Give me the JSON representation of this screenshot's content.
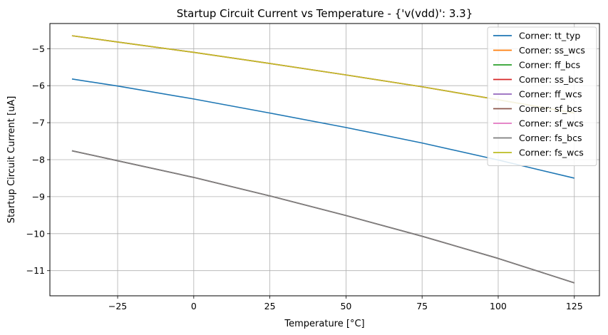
{
  "chart_data": {
    "type": "line",
    "title": "Startup Circuit Current vs Temperature - {'v(vdd)': 3.3}",
    "xlabel": "Temperature [°C]",
    "ylabel": "Startup Circuit Current [uA]",
    "xlim": [
      -47.25,
      133.25
    ],
    "ylim": [
      -11.68,
      -4.32
    ],
    "xticks": [
      -25,
      0,
      25,
      50,
      75,
      100,
      125
    ],
    "xtick_labels": [
      "−25",
      "0",
      "25",
      "50",
      "75",
      "100",
      "125"
    ],
    "yticks": [
      -11,
      -10,
      -9,
      -8,
      -7,
      -6,
      -5
    ],
    "ytick_labels": [
      "−11",
      "−10",
      "−9",
      "−8",
      "−7",
      "−6",
      "−5"
    ],
    "grid": true,
    "legend_position": "top-right",
    "x": [
      -40,
      -25,
      0,
      25,
      50,
      75,
      100,
      125
    ],
    "series": [
      {
        "name": "Corner: tt_typ",
        "color": "#1f77b4",
        "values": [
          -5.82,
          -6.01,
          -6.36,
          -6.74,
          -7.13,
          -7.55,
          -8.01,
          -8.5
        ]
      },
      {
        "name": "Corner: ss_wcs",
        "color": "#ff7f0e",
        "values": [
          -4.65,
          -4.82,
          -5.1,
          -5.4,
          -5.71,
          -6.03,
          -6.38,
          -6.74
        ]
      },
      {
        "name": "Corner: ff_bcs",
        "color": "#2ca02c",
        "values": [
          -7.76,
          -8.03,
          -8.48,
          -8.98,
          -9.51,
          -10.07,
          -10.67,
          -11.33
        ]
      },
      {
        "name": "Corner: ss_bcs",
        "color": "#d62728",
        "values": [
          -4.65,
          -4.82,
          -5.1,
          -5.4,
          -5.71,
          -6.03,
          -6.38,
          -6.74
        ]
      },
      {
        "name": "Corner: ff_wcs",
        "color": "#9467bd",
        "values": [
          -7.76,
          -8.03,
          -8.48,
          -8.98,
          -9.51,
          -10.07,
          -10.67,
          -11.33
        ]
      },
      {
        "name": "Corner: sf_bcs",
        "color": "#8c564b",
        "values": [
          -7.76,
          -8.03,
          -8.48,
          -8.98,
          -9.51,
          -10.07,
          -10.67,
          -11.33
        ]
      },
      {
        "name": "Corner: sf_wcs",
        "color": "#e377c2",
        "values": [
          -4.65,
          -4.82,
          -5.1,
          -5.4,
          -5.71,
          -6.03,
          -6.38,
          -6.74
        ]
      },
      {
        "name": "Corner: fs_bcs",
        "color": "#7f7f7f",
        "values": [
          -7.76,
          -8.03,
          -8.48,
          -8.98,
          -9.51,
          -10.07,
          -10.67,
          -11.33
        ]
      },
      {
        "name": "Corner: fs_wcs",
        "color": "#bcbd22",
        "values": [
          -4.65,
          -4.82,
          -5.1,
          -5.4,
          -5.71,
          -6.03,
          -6.38,
          -6.74
        ]
      }
    ]
  }
}
